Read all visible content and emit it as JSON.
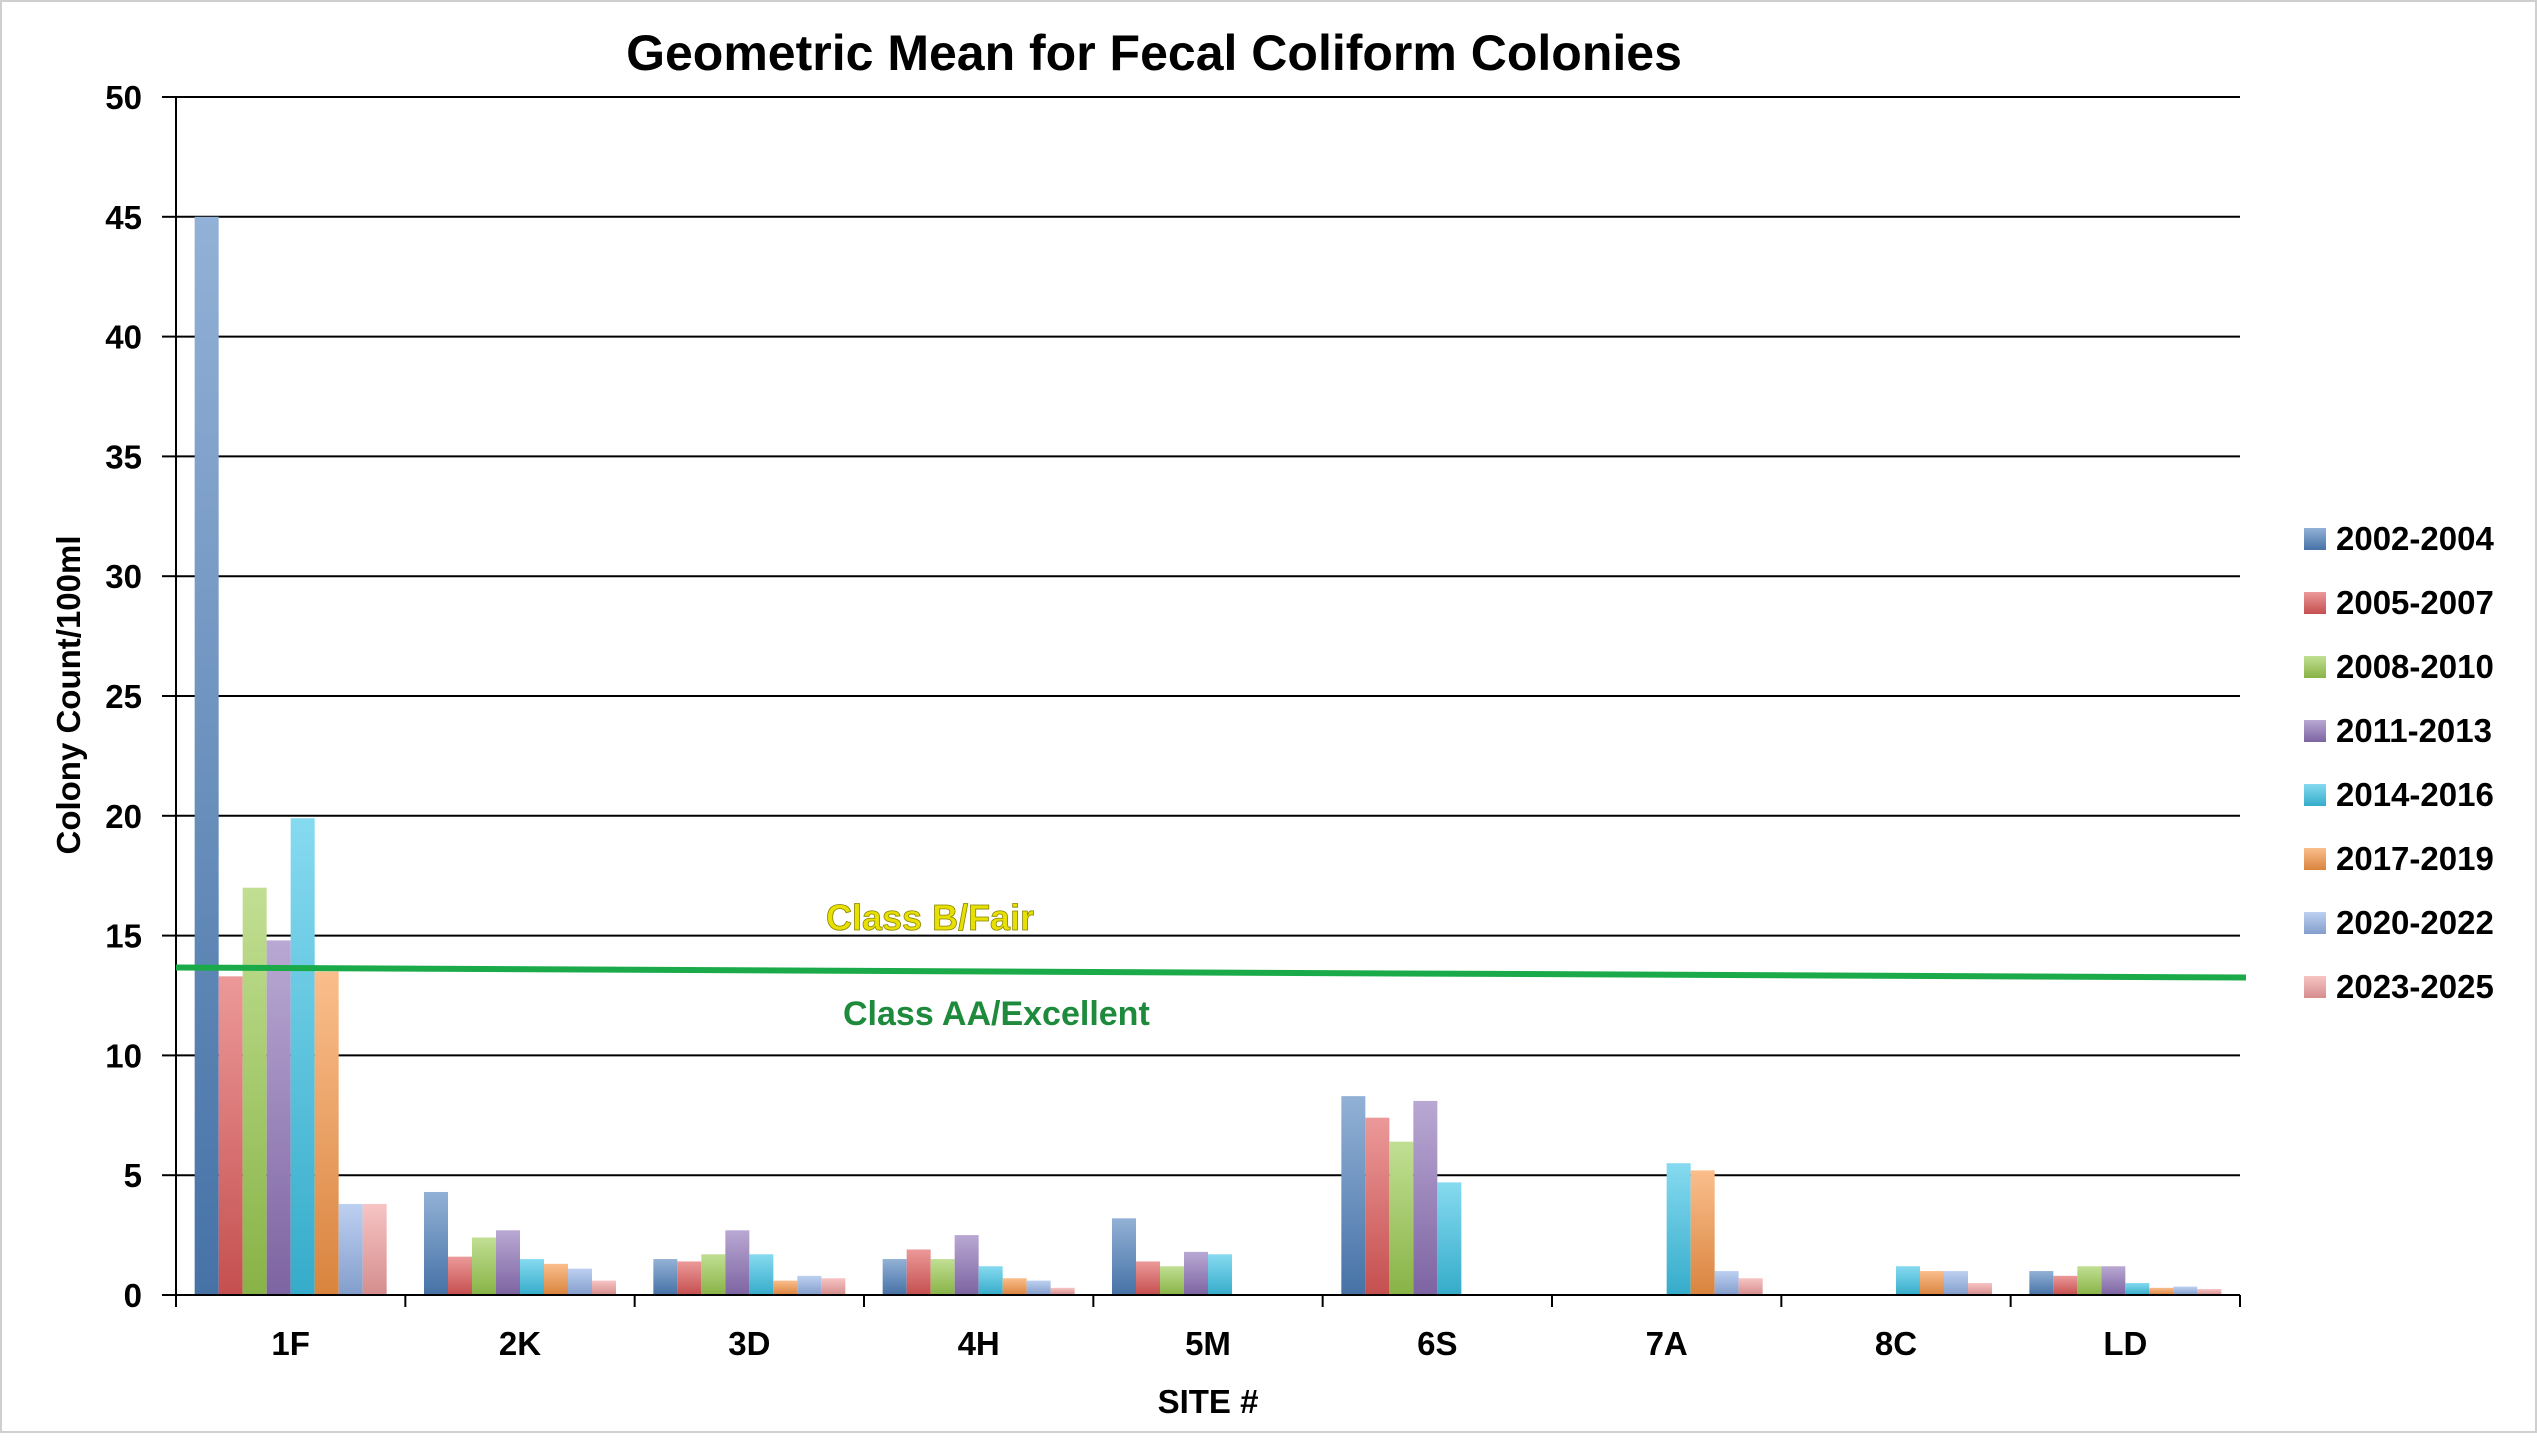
{
  "chart_data": {
    "type": "bar",
    "title": "Geometric Mean for Fecal Coliform Colonies",
    "xlabel": "SITE #",
    "ylabel": "Colony Count/100ml",
    "ylim": [
      0,
      50
    ],
    "yticks": [
      0,
      5,
      10,
      15,
      20,
      25,
      30,
      35,
      40,
      45,
      50
    ],
    "grid": true,
    "legend_position": "right",
    "categories": [
      "1F",
      "2K",
      "3D",
      "4H",
      "5M",
      "6S",
      "7A",
      "8C",
      "LD"
    ],
    "series": [
      {
        "name": "2002-2004",
        "color": "#4F81BD",
        "values": [
          45.0,
          4.3,
          1.5,
          1.5,
          3.2,
          8.3,
          null,
          null,
          1.0
        ]
      },
      {
        "name": "2005-2007",
        "color": "#E05A5A",
        "values": [
          13.3,
          1.6,
          1.4,
          1.9,
          1.4,
          7.4,
          null,
          null,
          0.8
        ]
      },
      {
        "name": "2008-2010",
        "color": "#9BCB50",
        "values": [
          17.0,
          2.4,
          1.7,
          1.5,
          1.2,
          6.4,
          null,
          null,
          1.2
        ]
      },
      {
        "name": "2011-2013",
        "color": "#8E72B8",
        "values": [
          14.8,
          2.7,
          2.7,
          2.5,
          1.8,
          8.1,
          null,
          null,
          1.2
        ]
      },
      {
        "name": "2014-2016",
        "color": "#3CC3E6",
        "values": [
          19.9,
          1.5,
          1.7,
          1.2,
          1.7,
          4.7,
          5.5,
          1.2,
          0.5
        ]
      },
      {
        "name": "2017-2019",
        "color": "#F79646",
        "values": [
          13.5,
          1.3,
          0.6,
          0.7,
          null,
          null,
          5.2,
          1.0,
          0.3
        ]
      },
      {
        "name": "2020-2022",
        "color": "#95B3E8",
        "values": [
          3.8,
          1.1,
          0.8,
          0.6,
          null,
          null,
          1.0,
          1.0,
          0.35
        ]
      },
      {
        "name": "2023-2025",
        "color": "#F2A0A0",
        "values": [
          3.8,
          0.6,
          0.7,
          0.3,
          null,
          null,
          0.7,
          0.5,
          0.25
        ]
      }
    ],
    "reference_line": {
      "value": 13.5,
      "color": "#1AAA4A"
    },
    "annotations": [
      {
        "text": "Class B/Fair",
        "color": "#E8E000"
      },
      {
        "text": "Class AA/Excellent",
        "color": "#1E8A3C"
      }
    ]
  }
}
